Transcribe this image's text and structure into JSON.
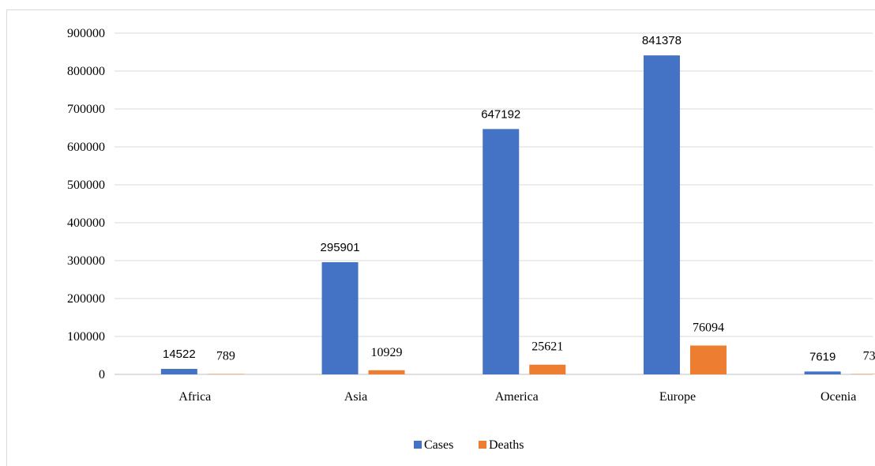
{
  "chart_data": {
    "type": "bar",
    "categories": [
      "Africa",
      "Asia",
      "America",
      "Europe",
      "Ocenia"
    ],
    "series": [
      {
        "name": "Cases",
        "values": [
          14522,
          295901,
          647192,
          841378,
          7619
        ],
        "color": "#4472C4",
        "labels": [
          "14522",
          "295901",
          "647192",
          "841378",
          "7619"
        ]
      },
      {
        "name": "Deaths",
        "values": [
          789,
          10929,
          25621,
          76094,
          73
        ],
        "color": "#ED7D31",
        "labels": [
          "789",
          "10929",
          "25621",
          "76094",
          "73"
        ]
      }
    ],
    "yticks": [
      "0",
      "100000",
      "200000",
      "300000",
      "400000",
      "500000",
      "600000",
      "700000",
      "800000",
      "900000"
    ],
    "ylim": [
      0,
      900000
    ],
    "grid": true,
    "legend_position": "bottom"
  }
}
